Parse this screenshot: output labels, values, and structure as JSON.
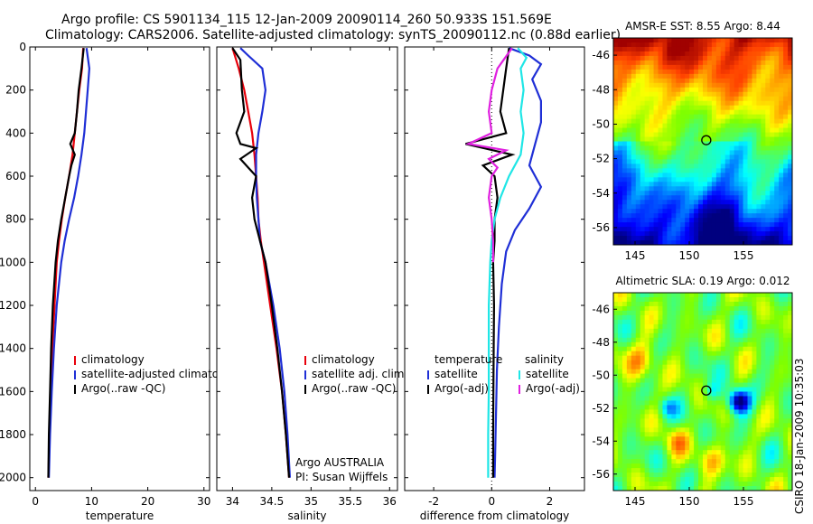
{
  "header": {
    "title_line1": "Argo profile: CS 5901134_115 12-Jan-2009 20090114_260 50.933S 151.569E",
    "title_line2": "Climatology: CARS2006. Satellite-adjusted climatology: synTS_20090112.nc (0.88d earlier)"
  },
  "colors": {
    "climatology": "#e8000b",
    "satellite": "#1f2fd6",
    "argo": "#000000",
    "satellite_salinity": "#1fe6e6",
    "argo_adj_salinity": "#e020e0"
  },
  "chart_data": [
    {
      "type": "line",
      "panel": "temperature",
      "xlabel": "temperature",
      "xlim": [
        -1,
        31
      ],
      "ylim": [
        2060,
        0
      ],
      "y_reversed": true,
      "x_ticks": [
        0,
        10,
        20,
        30
      ],
      "y_ticks": [
        0,
        200,
        400,
        600,
        800,
        1000,
        1200,
        1400,
        1600,
        1800,
        2000
      ],
      "legend": [
        "climatology",
        "satellite-adjusted climatology",
        "Argo(..raw -QC)"
      ],
      "series": [
        {
          "name": "climatology",
          "color_key": "climatology",
          "points": [
            [
              8.5,
              5
            ],
            [
              8.3,
              100
            ],
            [
              7.8,
              200
            ],
            [
              7.4,
              300
            ],
            [
              7.0,
              400
            ],
            [
              6.6,
              500
            ],
            [
              6.0,
              600
            ],
            [
              5.3,
              700
            ],
            [
              4.7,
              800
            ],
            [
              4.2,
              900
            ],
            [
              3.8,
              1000
            ],
            [
              3.4,
              1200
            ],
            [
              3.0,
              1400
            ],
            [
              2.7,
              1600
            ],
            [
              2.5,
              1800
            ],
            [
              2.3,
              2000
            ]
          ]
        },
        {
          "name": "satellite-adjusted climatology",
          "color_key": "satellite",
          "points": [
            [
              9.1,
              5
            ],
            [
              9.6,
              100
            ],
            [
              9.3,
              200
            ],
            [
              9.0,
              300
            ],
            [
              8.7,
              400
            ],
            [
              8.2,
              500
            ],
            [
              7.6,
              600
            ],
            [
              6.9,
              700
            ],
            [
              6.0,
              800
            ],
            [
              5.2,
              900
            ],
            [
              4.6,
              1000
            ],
            [
              3.8,
              1200
            ],
            [
              3.3,
              1400
            ],
            [
              2.9,
              1600
            ],
            [
              2.6,
              1800
            ],
            [
              2.4,
              2000
            ]
          ]
        },
        {
          "name": "Argo(..raw -QC)",
          "color_key": "argo",
          "points": [
            [
              8.6,
              5
            ],
            [
              8.2,
              100
            ],
            [
              7.7,
              200
            ],
            [
              7.4,
              300
            ],
            [
              7.0,
              400
            ],
            [
              6.2,
              450
            ],
            [
              7.0,
              500
            ],
            [
              6.4,
              550
            ],
            [
              6.0,
              600
            ],
            [
              5.3,
              700
            ],
            [
              4.6,
              800
            ],
            [
              4.0,
              900
            ],
            [
              3.6,
              1000
            ],
            [
              3.1,
              1200
            ],
            [
              2.8,
              1400
            ],
            [
              2.6,
              1600
            ],
            [
              2.4,
              1800
            ],
            [
              2.3,
              2000
            ]
          ]
        }
      ]
    },
    {
      "type": "line",
      "panel": "salinity",
      "xlabel": "salinity",
      "xlim": [
        33.8,
        36.1
      ],
      "ylim": [
        2060,
        0
      ],
      "y_reversed": true,
      "x_ticks": [
        34,
        34.5,
        35,
        35.5,
        36
      ],
      "x_tick_labels": [
        "34",
        "34.5",
        "35",
        "35.5",
        "36"
      ],
      "legend": [
        "climatology",
        "satellite adj. clim.",
        "Argo(..raw -QC)"
      ],
      "annotations": [
        "Argo AUSTRALIA",
        "PI: Susan Wijffels"
      ],
      "series": [
        {
          "name": "climatology",
          "color_key": "climatology",
          "points": [
            [
              34.0,
              5
            ],
            [
              34.08,
              100
            ],
            [
              34.15,
              200
            ],
            [
              34.2,
              300
            ],
            [
              34.25,
              400
            ],
            [
              34.28,
              500
            ],
            [
              34.3,
              600
            ],
            [
              34.32,
              700
            ],
            [
              34.33,
              800
            ],
            [
              34.36,
              900
            ],
            [
              34.4,
              1000
            ],
            [
              34.48,
              1200
            ],
            [
              34.56,
              1400
            ],
            [
              34.63,
              1600
            ],
            [
              34.68,
              1800
            ],
            [
              34.72,
              2000
            ]
          ]
        },
        {
          "name": "satellite adj. clim.",
          "color_key": "satellite",
          "points": [
            [
              34.1,
              5
            ],
            [
              34.2,
              40
            ],
            [
              34.38,
              100
            ],
            [
              34.42,
              200
            ],
            [
              34.38,
              300
            ],
            [
              34.33,
              400
            ],
            [
              34.3,
              500
            ],
            [
              34.3,
              600
            ],
            [
              34.31,
              700
            ],
            [
              34.33,
              800
            ],
            [
              34.35,
              900
            ],
            [
              34.42,
              1000
            ],
            [
              34.52,
              1200
            ],
            [
              34.6,
              1400
            ],
            [
              34.66,
              1600
            ],
            [
              34.7,
              1800
            ],
            [
              34.73,
              2000
            ]
          ]
        },
        {
          "name": "Argo(..raw -QC)",
          "color_key": "argo",
          "points": [
            [
              34.0,
              5
            ],
            [
              34.1,
              60
            ],
            [
              34.12,
              200
            ],
            [
              34.15,
              300
            ],
            [
              34.05,
              400
            ],
            [
              34.1,
              450
            ],
            [
              34.3,
              470
            ],
            [
              34.1,
              520
            ],
            [
              34.2,
              560
            ],
            [
              34.3,
              600
            ],
            [
              34.25,
              700
            ],
            [
              34.28,
              800
            ],
            [
              34.35,
              900
            ],
            [
              34.42,
              1000
            ],
            [
              34.5,
              1200
            ],
            [
              34.57,
              1400
            ],
            [
              34.63,
              1600
            ],
            [
              34.68,
              1800
            ],
            [
              34.72,
              2000
            ]
          ]
        }
      ]
    },
    {
      "type": "line",
      "panel": "difference",
      "xlabel": "difference from climatology",
      "xlim": [
        -3,
        3.2
      ],
      "ylim": [
        2060,
        0
      ],
      "y_reversed": true,
      "x_ticks": [
        -2,
        0,
        2
      ],
      "zero_line": true,
      "legend_headers": [
        "temperature",
        "salinity"
      ],
      "legend_left": [
        "satellite",
        "Argo(-adj)"
      ],
      "legend_right": [
        "satellite",
        "Argo(-adj)"
      ],
      "series": [
        {
          "name": "temperature satellite",
          "color_key": "satellite",
          "points": [
            [
              0.6,
              5
            ],
            [
              1.3,
              40
            ],
            [
              1.7,
              80
            ],
            [
              1.4,
              150
            ],
            [
              1.7,
              250
            ],
            [
              1.7,
              350
            ],
            [
              1.5,
              450
            ],
            [
              1.3,
              550
            ],
            [
              1.7,
              650
            ],
            [
              1.3,
              750
            ],
            [
              0.8,
              850
            ],
            [
              0.5,
              950
            ],
            [
              0.35,
              1100
            ],
            [
              0.25,
              1300
            ],
            [
              0.18,
              1500
            ],
            [
              0.15,
              1700
            ],
            [
              0.12,
              1900
            ],
            [
              0.1,
              2000
            ]
          ]
        },
        {
          "name": "temperature Argo(-adj)",
          "color_key": "argo",
          "points": [
            [
              0.6,
              5
            ],
            [
              0.5,
              100
            ],
            [
              0.4,
              200
            ],
            [
              0.3,
              300
            ],
            [
              0.5,
              400
            ],
            [
              -0.9,
              450
            ],
            [
              0.7,
              500
            ],
            [
              -0.3,
              550
            ],
            [
              0.1,
              600
            ],
            [
              0.2,
              700
            ],
            [
              0.1,
              800
            ],
            [
              0.1,
              900
            ],
            [
              0.05,
              1000
            ],
            [
              0.08,
              1200
            ],
            [
              0.07,
              1400
            ],
            [
              0.06,
              1600
            ],
            [
              0.05,
              1800
            ],
            [
              0.05,
              2000
            ]
          ]
        },
        {
          "name": "salinity satellite",
          "color_key": "satellite_salinity",
          "points": [
            [
              0.9,
              5
            ],
            [
              1.2,
              50
            ],
            [
              1.0,
              100
            ],
            [
              1.1,
              200
            ],
            [
              1.0,
              300
            ],
            [
              1.1,
              400
            ],
            [
              1.0,
              500
            ],
            [
              0.6,
              600
            ],
            [
              0.3,
              700
            ],
            [
              0.1,
              800
            ],
            [
              0.0,
              900
            ],
            [
              -0.05,
              1000
            ],
            [
              -0.1,
              1200
            ],
            [
              -0.1,
              1400
            ],
            [
              -0.1,
              1600
            ],
            [
              -0.12,
              1800
            ],
            [
              -0.12,
              2000
            ]
          ]
        },
        {
          "name": "salinity Argo(-adj)",
          "color_key": "argo_adj_salinity",
          "points": [
            [
              0.7,
              5
            ],
            [
              0.2,
              100
            ],
            [
              0.0,
              200
            ],
            [
              -0.1,
              300
            ],
            [
              0.0,
              400
            ],
            [
              -0.8,
              450
            ],
            [
              0.5,
              480
            ],
            [
              -0.1,
              520
            ],
            [
              0.2,
              560
            ],
            [
              0.0,
              600
            ],
            [
              -0.1,
              700
            ],
            [
              0.0,
              800
            ],
            [
              0.05,
              900
            ],
            [
              0.05,
              1000
            ]
          ]
        }
      ]
    },
    {
      "type": "heatmap",
      "panel": "sst_map",
      "title": "AMSR-E SST: 8.55 Argo: 8.44",
      "xlim": [
        143,
        159.5
      ],
      "ylim": [
        -57,
        -45
      ],
      "x_ticks": [
        145,
        150,
        155
      ],
      "y_ticks": [
        -46,
        -48,
        -50,
        -52,
        -54,
        -56
      ],
      "marker": {
        "lon": 151.57,
        "lat": -50.93
      },
      "palette": [
        "#00007f",
        "#0000ff",
        "#007fff",
        "#00ffff",
        "#3fff7f",
        "#7fff00",
        "#ffff00",
        "#ff9f00",
        "#ff3f00",
        "#9f0000"
      ]
    },
    {
      "type": "heatmap",
      "panel": "sla_map",
      "title": "Altimetric SLA: 0.19 Argo: 0.012",
      "xlim": [
        143,
        159.5
      ],
      "ylim": [
        -57,
        -45
      ],
      "x_ticks": [
        145,
        150,
        155
      ],
      "y_ticks": [
        -46,
        -48,
        -50,
        -52,
        -54,
        -56
      ],
      "marker": {
        "lon": 151.57,
        "lat": -50.93
      },
      "palette": [
        "#00007f",
        "#0000ff",
        "#007fff",
        "#00ffff",
        "#3fff7f",
        "#7fff00",
        "#ffff00",
        "#ff9f00",
        "#ff3f00",
        "#9f0000"
      ]
    }
  ],
  "side_label": "CSIRO 18-Jan-2009 10:35:03"
}
